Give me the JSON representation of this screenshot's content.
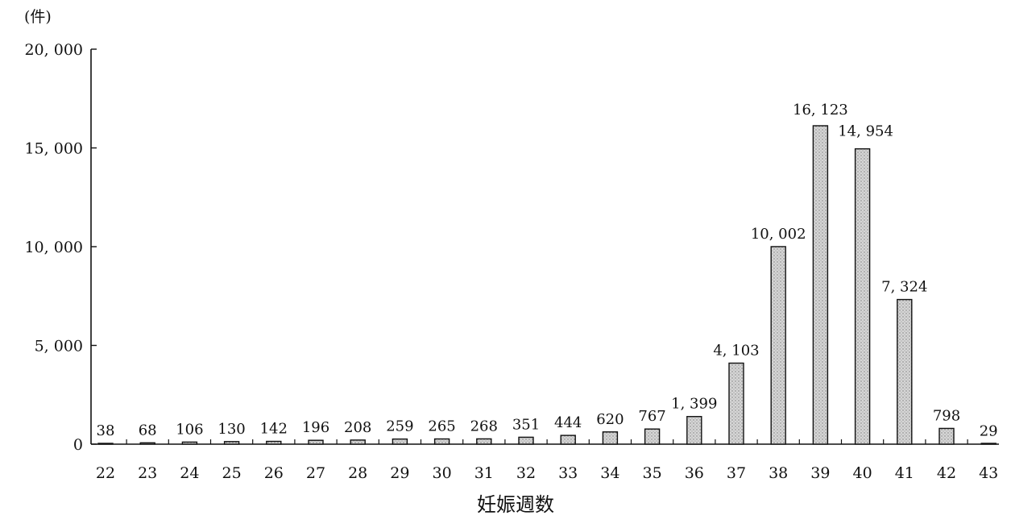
{
  "chart_data": {
    "type": "bar",
    "title": "",
    "unit_label": "(件)",
    "xlabel": "妊娠週数",
    "ylabel": "",
    "ylim": [
      0,
      20000
    ],
    "y_ticks": [
      {
        "value": 0,
        "label": "0"
      },
      {
        "value": 5000,
        "label": "5, 000"
      },
      {
        "value": 10000,
        "label": "10, 000"
      },
      {
        "value": 15000,
        "label": "15, 000"
      },
      {
        "value": 20000,
        "label": "20, 000"
      }
    ],
    "categories": [
      "22",
      "23",
      "24",
      "25",
      "26",
      "27",
      "28",
      "29",
      "30",
      "31",
      "32",
      "33",
      "34",
      "35",
      "36",
      "37",
      "38",
      "39",
      "40",
      "41",
      "42",
      "43"
    ],
    "values": [
      38,
      68,
      106,
      130,
      142,
      196,
      208,
      259,
      265,
      268,
      351,
      444,
      620,
      767,
      1399,
      4103,
      10002,
      16123,
      14954,
      7324,
      798,
      29
    ],
    "data_labels": [
      "38",
      "68",
      "106",
      "130",
      "142",
      "196",
      "208",
      "259",
      "265",
      "268",
      "351",
      "444",
      "620",
      "767",
      "1, 399",
      "4, 103",
      "10, 002",
      "16, 123",
      "14, 954",
      "7, 324",
      "798",
      "29"
    ],
    "grid": false,
    "legend": "none",
    "bar_fill": "#c9c9c9",
    "bar_stroke": "#111111"
  }
}
